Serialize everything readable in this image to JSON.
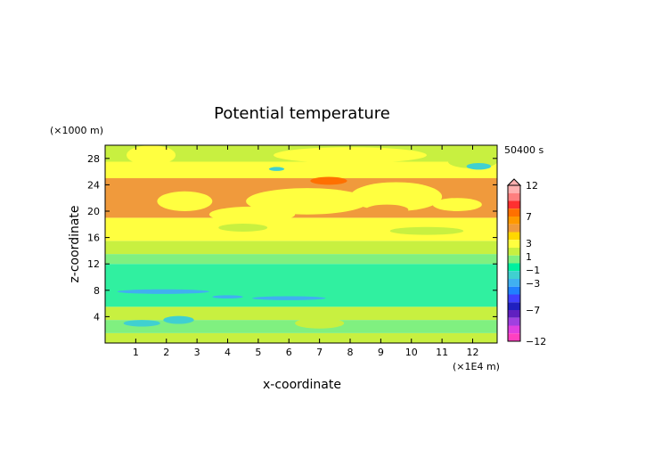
{
  "chart_data": {
    "type": "heatmap",
    "title": "Potential temperature",
    "xlabel": "x-coordinate",
    "ylabel": "z-coordinate",
    "x_unit": "(×1E4 m)",
    "y_unit": "(×1000 m)",
    "time_label": "50400 s",
    "xlim": [
      0,
      12.8
    ],
    "ylim": [
      0,
      30
    ],
    "x_ticks": [
      "1",
      "2",
      "3",
      "4",
      "5",
      "6",
      "7",
      "8",
      "9",
      "10",
      "11",
      "12"
    ],
    "y_ticks": [
      "4",
      "8",
      "12",
      "16",
      "20",
      "24",
      "28"
    ],
    "colorbar": {
      "labels": [
        "12",
        "7",
        "3",
        "1",
        "−1",
        "−3",
        "−7",
        "−12"
      ],
      "colors": [
        "#ffb0b0",
        "#ff7f7f",
        "#ff3030",
        "#ff7000",
        "#ff9900",
        "#f09a3c",
        "#ffd700",
        "#ffff40",
        "#c8f040",
        "#80f080",
        "#00f0a0",
        "#40d0d0",
        "#40b0f0",
        "#2080ff",
        "#4040ff",
        "#2020c0",
        "#6020c0",
        "#a040e0",
        "#e040e0",
        "#ff40c0"
      ]
    },
    "bands": [
      {
        "z0": 0,
        "z1": 1.5,
        "color": "#c8f040"
      },
      {
        "z0": 1.5,
        "z1": 3.5,
        "color": "#80f080"
      },
      {
        "z0": 3.5,
        "z1": 5.5,
        "color": "#c8f040"
      },
      {
        "z0": 5.5,
        "z1": 12,
        "color": "#30f0a0"
      },
      {
        "z0": 12,
        "z1": 13.5,
        "color": "#80f080"
      },
      {
        "z0": 13.5,
        "z1": 15.5,
        "color": "#c8f040"
      },
      {
        "z0": 15.5,
        "z1": 19,
        "color": "#ffff40"
      },
      {
        "z0": 19,
        "z1": 25,
        "color": "#f09a3c"
      },
      {
        "z0": 25,
        "z1": 27.5,
        "color": "#ffff40"
      },
      {
        "z0": 27.5,
        "z1": 30,
        "color": "#c8f040"
      }
    ]
  }
}
